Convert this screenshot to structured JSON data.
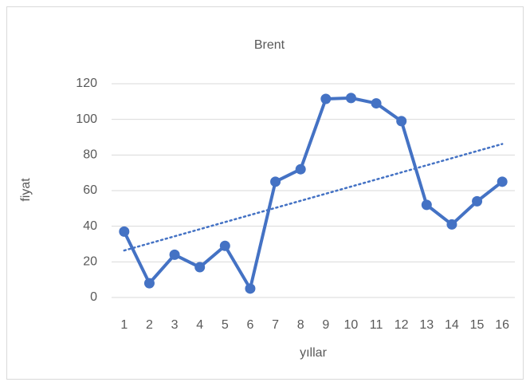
{
  "chart_data": {
    "type": "line",
    "title": "Brent",
    "x_label": "yıllar",
    "y_label": "fiyat",
    "categories": [
      1,
      2,
      3,
      4,
      5,
      6,
      7,
      8,
      9,
      10,
      11,
      12,
      13,
      14,
      15,
      16
    ],
    "series": [
      {
        "name": "Brent",
        "color": "#4472c4",
        "values": [
          37,
          8,
          24,
          17,
          29,
          5,
          65,
          72,
          111.5,
          112,
          109,
          99,
          52,
          41,
          54,
          65
        ]
      }
    ],
    "trendline": "linear",
    "ylim": [
      0,
      120
    ],
    "yticks": [
      0,
      20,
      40,
      60,
      80,
      100,
      120
    ],
    "grid": true
  }
}
